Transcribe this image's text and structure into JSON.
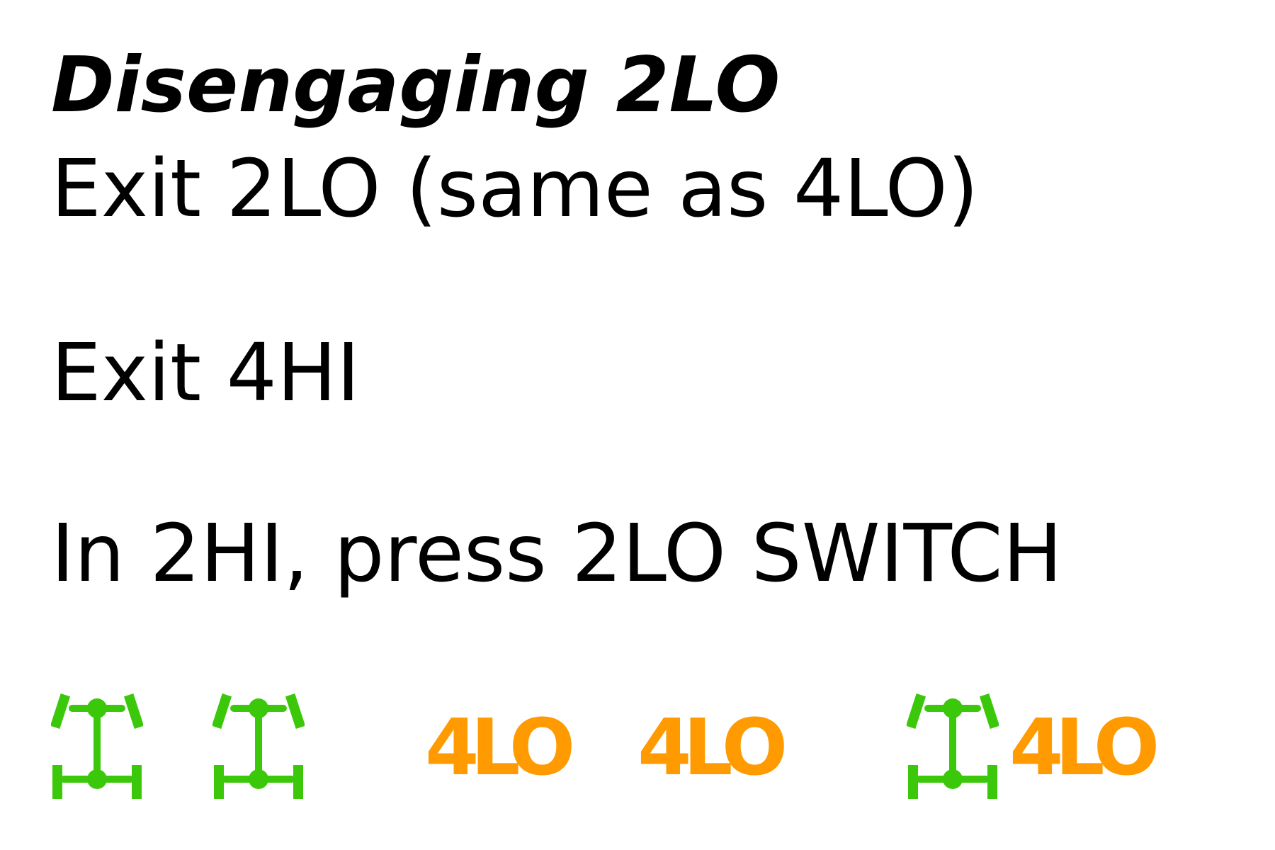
{
  "title": "Disengaging 2LO",
  "steps": [
    "Exit 2LO (same as 4LO)",
    "Exit 4HI",
    "In 2HI, press 2LO SWITCH"
  ],
  "indicators": {
    "colors": {
      "drive_icon": "#3cc80a",
      "lo_label": "#ff9a00"
    },
    "icon_name": "4wd-drivetrain-icon",
    "lo_label": "4LO"
  }
}
